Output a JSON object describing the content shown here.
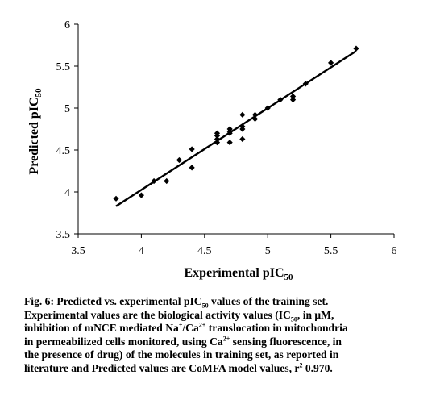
{
  "chart_data": {
    "type": "scatter",
    "xlabel": "Experimental pIC",
    "xlabel_sub": "50",
    "ylabel": "Predicted pIC",
    "ylabel_sub": "50",
    "xlim": [
      3.5,
      6
    ],
    "ylim": [
      3.5,
      6
    ],
    "xticks": [
      "3.5",
      "4",
      "4.5",
      "5",
      "5.5",
      "6"
    ],
    "yticks": [
      "3.5",
      "4",
      "4.5",
      "5",
      "5.5",
      "6"
    ],
    "grid": false,
    "legend": "none",
    "marker": "diamond",
    "color": "#000000",
    "points": [
      {
        "x": 3.8,
        "y": 3.92
      },
      {
        "x": 4.0,
        "y": 3.96
      },
      {
        "x": 4.1,
        "y": 4.13
      },
      {
        "x": 4.2,
        "y": 4.13
      },
      {
        "x": 4.3,
        "y": 4.38
      },
      {
        "x": 4.4,
        "y": 4.51
      },
      {
        "x": 4.4,
        "y": 4.29
      },
      {
        "x": 4.6,
        "y": 4.7
      },
      {
        "x": 4.6,
        "y": 4.67
      },
      {
        "x": 4.6,
        "y": 4.63
      },
      {
        "x": 4.6,
        "y": 4.59
      },
      {
        "x": 4.7,
        "y": 4.75
      },
      {
        "x": 4.7,
        "y": 4.72
      },
      {
        "x": 4.7,
        "y": 4.7
      },
      {
        "x": 4.7,
        "y": 4.59
      },
      {
        "x": 4.8,
        "y": 4.92
      },
      {
        "x": 4.8,
        "y": 4.78
      },
      {
        "x": 4.8,
        "y": 4.75
      },
      {
        "x": 4.8,
        "y": 4.63
      },
      {
        "x": 4.9,
        "y": 4.92
      },
      {
        "x": 4.9,
        "y": 4.87
      },
      {
        "x": 5.0,
        "y": 5.0
      },
      {
        "x": 5.1,
        "y": 5.1
      },
      {
        "x": 5.2,
        "y": 5.14
      },
      {
        "x": 5.2,
        "y": 5.1
      },
      {
        "x": 5.3,
        "y": 5.29
      },
      {
        "x": 5.5,
        "y": 5.54
      },
      {
        "x": 5.7,
        "y": 5.71
      }
    ],
    "trendline": {
      "x": [
        3.8,
        5.7
      ],
      "y": [
        3.83,
        5.68
      ]
    }
  },
  "caption": {
    "line1_a": "Fig. 6: Predicted vs. experimental pIC",
    "line1_sub": "50",
    "line1_b": " values of the training set.",
    "line2_a": "Experimental values are the biological activity values (IC",
    "line2_sub": "50",
    "line2_b": ", in μM,",
    "line3_a": "inhibition of mNCE mediated Na",
    "line3_sup1": "+",
    "line3_b": "/Ca",
    "line3_sup2": "2+",
    "line3_c": " translocation in mitochondria",
    "line4": "in permeabilized cells monitored, using Ca",
    "line4_sup": "2+",
    "line4_b": " sensing fluorescence, in",
    "line5": "the presence of drug) of the molecules in training set, as reported in",
    "line6_a": "literature and Predicted values are CoMFA model values, r",
    "line6_sup": "2",
    "line6_b": " 0.970."
  }
}
